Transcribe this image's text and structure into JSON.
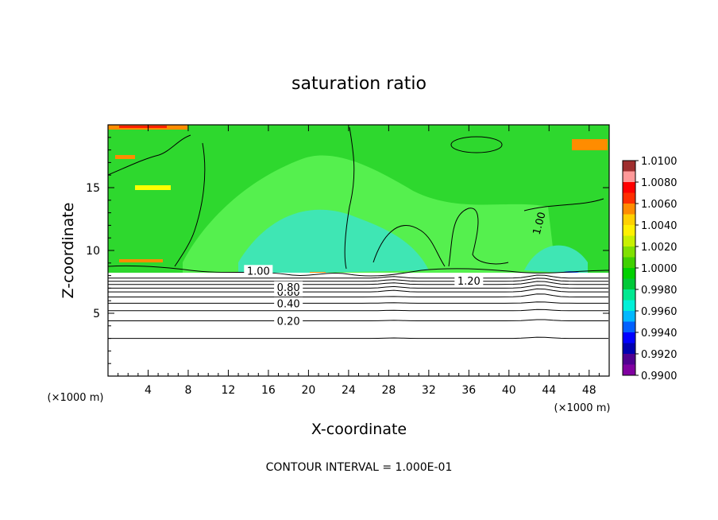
{
  "chart_data": {
    "type": "heatmap",
    "title": "saturation ratio",
    "xlabel": "X-coordinate",
    "ylabel": "Z-coordinate",
    "x_unit": "(×1000 m)",
    "z_unit": "(×1000 m)",
    "xlim": [
      0,
      50
    ],
    "ylim": [
      0,
      20
    ],
    "x_ticks": [
      4,
      8,
      12,
      16,
      20,
      24,
      28,
      32,
      36,
      40,
      44,
      48
    ],
    "y_ticks": [
      5,
      10,
      15
    ],
    "footer": "CONTOUR INTERVAL = 1.000E-01",
    "colorbar": {
      "range": [
        0.99,
        1.01
      ],
      "labels": [
        "1.0100",
        "1.0080",
        "1.0060",
        "1.0040",
        "1.0020",
        "1.0000",
        "0.9980",
        "0.9960",
        "0.9940",
        "0.9920",
        "0.9900"
      ],
      "colors": [
        "#9f2f2f",
        "#ff9999",
        "#ff0000",
        "#ff2f00",
        "#ff8c00",
        "#ffd000",
        "#fff000",
        "#c8f000",
        "#80e000",
        "#40d000",
        "#00d000",
        "#00c838",
        "#00e890",
        "#00f0d8",
        "#00b8ff",
        "#0060ff",
        "#0000ff",
        "#0000b0",
        "#500090",
        "#8000a0"
      ]
    },
    "field_colors": {
      "main": "#2ed82e",
      "light": "#55f04e",
      "cyan": "#3fe6b4",
      "blue": "#1e5fff",
      "orange": "#ff8c00",
      "red": "#ff2000",
      "yellow": "#ffff00"
    },
    "cloud_base_km": 8.0,
    "contour_lines": [
      {
        "label": "0.20",
        "z": 4.4
      },
      {
        "label": "0.40",
        "z": 5.8
      },
      {
        "label": "0.60",
        "z": 6.7
      },
      {
        "label": "0.80",
        "z": 7.1
      },
      {
        "label": "1.00",
        "z": 8.4
      },
      {
        "label": "1.20",
        "z": 7.6
      }
    ]
  }
}
